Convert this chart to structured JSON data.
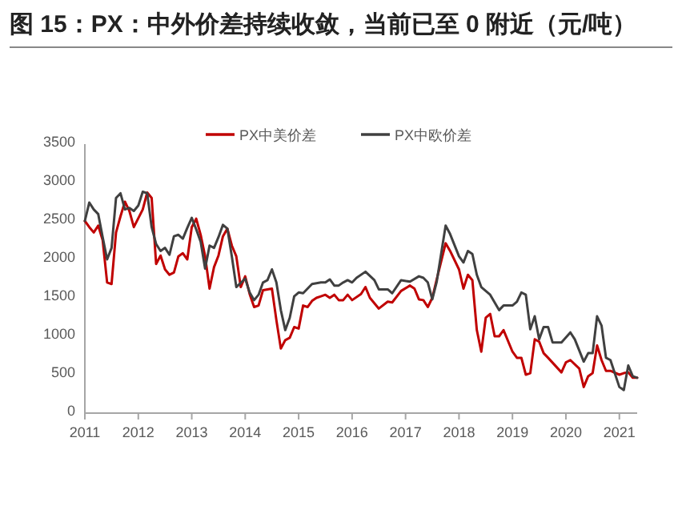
{
  "chart_data": {
    "type": "line",
    "title": "图 15：PX：中外价差持续收敛，当前已至 0 附近（元/吨）",
    "xlim": [
      "2011-01",
      "2021-05"
    ],
    "xticks": [
      "2011",
      "2012",
      "2013",
      "2014",
      "2015",
      "2016",
      "2017",
      "2018",
      "2019",
      "2020",
      "2021"
    ],
    "ylim": [
      0,
      3500
    ],
    "yticks": [
      0,
      500,
      1000,
      1500,
      2000,
      2500,
      3000,
      3500
    ],
    "grid": false,
    "legend": "top",
    "marker": "none",
    "line_style": "solid",
    "series": [
      {
        "name": "PX中美价差",
        "color": "#c00000",
        "x": [
          "2011-01",
          "2011-02",
          "2011-03",
          "2011-04",
          "2011-05",
          "2011-06",
          "2011-07",
          "2011-08",
          "2011-09",
          "2011-10",
          "2011-11",
          "2011-12",
          "2012-02",
          "2012-03",
          "2012-04",
          "2012-05",
          "2012-06",
          "2012-07",
          "2012-08",
          "2012-09",
          "2012-10",
          "2012-11",
          "2012-12",
          "2013-01",
          "2013-02",
          "2013-03",
          "2013-04",
          "2013-05",
          "2013-06",
          "2013-07",
          "2013-08",
          "2013-09",
          "2013-10",
          "2013-11",
          "2013-12",
          "2014-01",
          "2014-02",
          "2014-03",
          "2014-04",
          "2014-05",
          "2014-06",
          "2014-07",
          "2014-08",
          "2014-09",
          "2014-10",
          "2014-11",
          "2014-12",
          "2015-01",
          "2015-02",
          "2015-03",
          "2015-04",
          "2015-05",
          "2015-06",
          "2015-07",
          "2015-08",
          "2015-09",
          "2015-10",
          "2015-11",
          "2015-12",
          "2016-01",
          "2016-03",
          "2016-04",
          "2016-05",
          "2016-07",
          "2016-09",
          "2016-10",
          "2016-12",
          "2017-02",
          "2017-03",
          "2017-04",
          "2017-05",
          "2017-06",
          "2017-07",
          "2017-08",
          "2017-10",
          "2017-11",
          "2018-01",
          "2018-02",
          "2018-03",
          "2018-04",
          "2018-05",
          "2018-06",
          "2018-07",
          "2018-08",
          "2018-09",
          "2018-10",
          "2018-11",
          "2019-01",
          "2019-02",
          "2019-03",
          "2019-04",
          "2019-05",
          "2019-06",
          "2019-07",
          "2019-08",
          "2019-09",
          "2019-12",
          "2020-01",
          "2020-02",
          "2020-04",
          "2020-05",
          "2020-06",
          "2020-07",
          "2020-08",
          "2020-09",
          "2020-10",
          "2020-11",
          "2021-01",
          "2021-02",
          "2021-03",
          "2021-04",
          "2021-05"
        ],
        "values": [
          2500,
          2420,
          2350,
          2440,
          2250,
          1700,
          1680,
          2350,
          2560,
          2750,
          2630,
          2420,
          2650,
          2870,
          2800,
          1940,
          2050,
          1870,
          1800,
          1830,
          2040,
          2080,
          2000,
          2420,
          2530,
          2320,
          2040,
          1620,
          1900,
          2050,
          2300,
          2400,
          2180,
          2040,
          1640,
          1780,
          1550,
          1380,
          1400,
          1600,
          1610,
          1620,
          1210,
          840,
          950,
          980,
          1120,
          1100,
          1400,
          1380,
          1460,
          1500,
          1520,
          1540,
          1500,
          1540,
          1470,
          1470,
          1540,
          1470,
          1550,
          1640,
          1500,
          1360,
          1450,
          1440,
          1590,
          1660,
          1620,
          1480,
          1470,
          1380,
          1500,
          1740,
          2210,
          2110,
          1870,
          1620,
          1800,
          1730,
          1080,
          800,
          1240,
          1290,
          1000,
          1000,
          1080,
          800,
          720,
          720,
          500,
          520,
          960,
          930,
          780,
          720,
          530,
          660,
          690,
          580,
          340,
          480,
          520,
          880,
          690,
          550,
          550,
          500,
          520,
          530,
          460,
          460
        ]
      },
      {
        "name": "PX中欧价差",
        "color": "#404040",
        "x": [
          "2011-01",
          "2011-02",
          "2011-03",
          "2011-04",
          "2011-05",
          "2011-06",
          "2011-07",
          "2011-08",
          "2011-09",
          "2011-10",
          "2011-11",
          "2011-12",
          "2012-01",
          "2012-02",
          "2012-03",
          "2012-04",
          "2012-05",
          "2012-06",
          "2012-07",
          "2012-08",
          "2012-09",
          "2012-10",
          "2012-11",
          "2012-12",
          "2013-01",
          "2013-02",
          "2013-03",
          "2013-04",
          "2013-05",
          "2013-06",
          "2013-07",
          "2013-08",
          "2013-09",
          "2013-10",
          "2013-11",
          "2014-01",
          "2014-02",
          "2014-03",
          "2014-04",
          "2014-05",
          "2014-06",
          "2014-07",
          "2014-08",
          "2014-09",
          "2014-10",
          "2014-11",
          "2014-12",
          "2015-01",
          "2015-02",
          "2015-03",
          "2015-04",
          "2015-06",
          "2015-07",
          "2015-08",
          "2015-09",
          "2015-10",
          "2015-11",
          "2015-12",
          "2016-01",
          "2016-02",
          "2016-04",
          "2016-06",
          "2016-07",
          "2016-09",
          "2016-10",
          "2016-12",
          "2017-02",
          "2017-04",
          "2017-05",
          "2017-06",
          "2017-07",
          "2017-08",
          "2017-10",
          "2017-11",
          "2018-01",
          "2018-02",
          "2018-03",
          "2018-04",
          "2018-05",
          "2018-06",
          "2018-08",
          "2018-10",
          "2018-11",
          "2019-01",
          "2019-02",
          "2019-03",
          "2019-04",
          "2019-05",
          "2019-06",
          "2019-07",
          "2019-08",
          "2019-09",
          "2019-10",
          "2019-12",
          "2020-02",
          "2020-03",
          "2020-05",
          "2020-06",
          "2020-07",
          "2020-08",
          "2020-09",
          "2020-10",
          "2020-11",
          "2021-01",
          "2021-02",
          "2021-03",
          "2021-04",
          "2021-05"
        ],
        "values": [
          2500,
          2740,
          2650,
          2590,
          2290,
          2000,
          2150,
          2800,
          2860,
          2650,
          2670,
          2630,
          2700,
          2880,
          2860,
          2420,
          2200,
          2110,
          2150,
          2060,
          2300,
          2320,
          2270,
          2410,
          2540,
          2390,
          2230,
          1880,
          2180,
          2150,
          2290,
          2450,
          2400,
          2040,
          1640,
          1750,
          1570,
          1470,
          1540,
          1700,
          1730,
          1870,
          1700,
          1340,
          1080,
          1240,
          1520,
          1570,
          1560,
          1620,
          1680,
          1700,
          1700,
          1740,
          1660,
          1660,
          1700,
          1730,
          1700,
          1760,
          1840,
          1730,
          1610,
          1610,
          1560,
          1730,
          1710,
          1780,
          1760,
          1700,
          1480,
          1710,
          2440,
          2330,
          2040,
          1960,
          2110,
          2070,
          1800,
          1640,
          1540,
          1340,
          1400,
          1400,
          1450,
          1570,
          1540,
          1090,
          1260,
          960,
          1120,
          1120,
          920,
          920,
          1050,
          960,
          670,
          780,
          780,
          1260,
          1140,
          720,
          690,
          340,
          300,
          620,
          480,
          460
        ]
      }
    ]
  }
}
